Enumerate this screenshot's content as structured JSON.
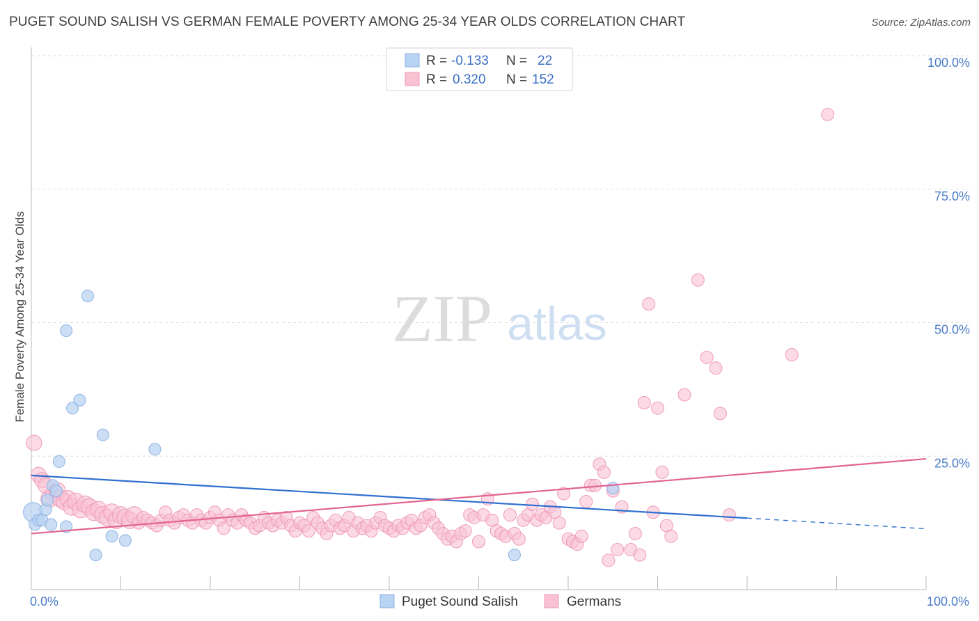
{
  "title": "PUGET SOUND SALISH VS GERMAN FEMALE POVERTY AMONG 25-34 YEAR OLDS CORRELATION CHART",
  "source": "Source: ZipAtlas.com",
  "watermark": {
    "zip": "ZIP",
    "atlas": "atlas"
  },
  "colors": {
    "blue_fill": "#b9d3f2",
    "blue_stroke": "#8db2e3",
    "blue_line": "#2f6fcf",
    "pink_fill": "#f9c2d3",
    "pink_stroke": "#ee9ab6",
    "pink_line": "#e2638f",
    "tick_text": "#4a7bc8",
    "grid": "#dddddd"
  },
  "legend_top": [
    {
      "series": "Puget Sound Salish",
      "r_label": "R =",
      "r_value": "-0.133",
      "n_label": "N =",
      "n_value": "22"
    },
    {
      "series": "Germans",
      "r_label": "R =",
      "r_value": "0.320",
      "n_label": "N =",
      "n_value": "152"
    }
  ],
  "chart_data": {
    "type": "scatter",
    "title": "PUGET SOUND SALISH VS GERMAN FEMALE POVERTY AMONG 25-34 YEAR OLDS CORRELATION CHART",
    "xlabel": "",
    "ylabel": "Female Poverty Among 25-34 Year Olds",
    "xlim": [
      0,
      100
    ],
    "ylim": [
      0,
      100
    ],
    "x_tick_labels": [
      {
        "value": 0,
        "label": "0.0%"
      },
      {
        "value": 100,
        "label": "100.0%"
      }
    ],
    "y_tick_labels": [
      {
        "value": 25,
        "label": "25.0%"
      },
      {
        "value": 50,
        "label": "50.0%"
      },
      {
        "value": 75,
        "label": "75.0%"
      },
      {
        "value": 100,
        "label": "100.0%"
      }
    ],
    "legend": [
      "Puget Sound Salish",
      "Germans"
    ],
    "series": [
      {
        "name": "Puget Sound Salish",
        "color": "#b9d3f2",
        "points": [
          [
            0.2,
            14.5
          ],
          [
            0.4,
            12.2
          ],
          [
            0.8,
            13.0
          ],
          [
            1.2,
            13.0
          ],
          [
            1.6,
            15.0
          ],
          [
            1.8,
            16.8
          ],
          [
            2.2,
            12.2
          ],
          [
            2.4,
            19.5
          ],
          [
            2.8,
            18.5
          ],
          [
            3.1,
            24.0
          ],
          [
            3.9,
            11.8
          ],
          [
            3.9,
            48.5
          ],
          [
            4.6,
            34.0
          ],
          [
            5.4,
            35.5
          ],
          [
            6.3,
            55.0
          ],
          [
            7.2,
            6.5
          ],
          [
            8.0,
            29.0
          ],
          [
            9.0,
            10.0
          ],
          [
            10.5,
            9.2
          ],
          [
            13.8,
            26.3
          ],
          [
            54.0,
            6.5
          ],
          [
            65.0,
            19.0
          ]
        ],
        "trend": {
          "x": [
            0,
            80
          ],
          "y": [
            21.4,
            13.4
          ],
          "dashed_to": [
            100,
            11.4
          ]
        }
      },
      {
        "name": "Germans",
        "color": "#f9c2d3",
        "points": [
          [
            0.3,
            27.5
          ],
          [
            0.8,
            21.5
          ],
          [
            1.2,
            20.5
          ],
          [
            1.6,
            19.5
          ],
          [
            2.0,
            17.0
          ],
          [
            2.5,
            18.0
          ],
          [
            2.9,
            18.5
          ],
          [
            3.3,
            17.0
          ],
          [
            3.7,
            16.5
          ],
          [
            4.1,
            17.0
          ],
          [
            4.5,
            15.5
          ],
          [
            5.0,
            16.5
          ],
          [
            5.5,
            15.0
          ],
          [
            6.0,
            16.0
          ],
          [
            6.5,
            15.5
          ],
          [
            7.0,
            14.5
          ],
          [
            7.5,
            15.0
          ],
          [
            8.0,
            14.0
          ],
          [
            8.5,
            13.5
          ],
          [
            9.0,
            14.5
          ],
          [
            9.5,
            13.0
          ],
          [
            10.0,
            14.0
          ],
          [
            10.5,
            13.5
          ],
          [
            11.0,
            13.0
          ],
          [
            11.5,
            14.0
          ],
          [
            12.0,
            12.5
          ],
          [
            12.5,
            13.5
          ],
          [
            13.0,
            13.0
          ],
          [
            13.5,
            12.5
          ],
          [
            14.0,
            12.0
          ],
          [
            14.5,
            13.0
          ],
          [
            15.0,
            14.5
          ],
          [
            15.5,
            13.0
          ],
          [
            16.0,
            12.5
          ],
          [
            16.5,
            13.5
          ],
          [
            17.0,
            14.0
          ],
          [
            17.5,
            13.0
          ],
          [
            18.0,
            12.5
          ],
          [
            18.5,
            14.0
          ],
          [
            19.0,
            13.0
          ],
          [
            19.5,
            12.5
          ],
          [
            20.0,
            13.5
          ],
          [
            20.5,
            14.5
          ],
          [
            21.0,
            13.0
          ],
          [
            21.5,
            11.5
          ],
          [
            22.0,
            14.0
          ],
          [
            22.5,
            13.0
          ],
          [
            23.0,
            12.5
          ],
          [
            23.5,
            14.0
          ],
          [
            24.0,
            13.0
          ],
          [
            24.5,
            12.5
          ],
          [
            25.0,
            11.5
          ],
          [
            25.5,
            12.0
          ],
          [
            26.0,
            13.5
          ],
          [
            26.5,
            12.5
          ],
          [
            27.0,
            12.0
          ],
          [
            27.5,
            13.0
          ],
          [
            28.0,
            12.5
          ],
          [
            28.5,
            13.5
          ],
          [
            29.0,
            12.0
          ],
          [
            29.5,
            11.0
          ],
          [
            30.0,
            12.5
          ],
          [
            30.5,
            12.0
          ],
          [
            31.0,
            11.0
          ],
          [
            31.5,
            13.5
          ],
          [
            32.0,
            12.5
          ],
          [
            32.5,
            11.5
          ],
          [
            33.0,
            10.5
          ],
          [
            33.5,
            12.0
          ],
          [
            34.0,
            13.0
          ],
          [
            34.5,
            11.5
          ],
          [
            35.0,
            12.0
          ],
          [
            35.5,
            13.5
          ],
          [
            36.0,
            11.0
          ],
          [
            36.5,
            12.5
          ],
          [
            37.0,
            11.5
          ],
          [
            37.5,
            12.0
          ],
          [
            38.0,
            11.0
          ],
          [
            38.5,
            12.5
          ],
          [
            39.0,
            13.5
          ],
          [
            39.5,
            12.0
          ],
          [
            40.0,
            11.5
          ],
          [
            40.5,
            11.0
          ],
          [
            41.0,
            12.0
          ],
          [
            41.5,
            11.5
          ],
          [
            42.0,
            12.5
          ],
          [
            42.5,
            13.0
          ],
          [
            43.0,
            11.5
          ],
          [
            43.5,
            12.0
          ],
          [
            44.0,
            13.5
          ],
          [
            44.5,
            14.0
          ],
          [
            45.0,
            12.5
          ],
          [
            45.5,
            11.5
          ],
          [
            46.0,
            10.5
          ],
          [
            46.5,
            9.5
          ],
          [
            47.0,
            10.0
          ],
          [
            47.5,
            9.0
          ],
          [
            48.0,
            10.5
          ],
          [
            48.5,
            11.0
          ],
          [
            49.0,
            14.0
          ],
          [
            49.5,
            13.5
          ],
          [
            50.0,
            9.0
          ],
          [
            50.5,
            14.0
          ],
          [
            51.0,
            17.0
          ],
          [
            51.5,
            13.0
          ],
          [
            52.0,
            11.0
          ],
          [
            52.5,
            10.5
          ],
          [
            53.0,
            10.0
          ],
          [
            53.5,
            14.0
          ],
          [
            54.0,
            10.5
          ],
          [
            54.5,
            9.5
          ],
          [
            55.0,
            13.0
          ],
          [
            55.5,
            14.0
          ],
          [
            56.0,
            16.0
          ],
          [
            56.5,
            13.0
          ],
          [
            57.0,
            14.0
          ],
          [
            57.5,
            13.5
          ],
          [
            58.0,
            15.5
          ],
          [
            58.5,
            14.5
          ],
          [
            59.0,
            12.5
          ],
          [
            59.5,
            18.0
          ],
          [
            60.0,
            9.5
          ],
          [
            60.5,
            9.0
          ],
          [
            61.0,
            8.5
          ],
          [
            61.5,
            10.0
          ],
          [
            62.0,
            16.5
          ],
          [
            62.5,
            19.5
          ],
          [
            63.0,
            19.5
          ],
          [
            63.5,
            23.5
          ],
          [
            64.0,
            22.0
          ],
          [
            64.5,
            5.5
          ],
          [
            65.0,
            18.5
          ],
          [
            65.5,
            7.5
          ],
          [
            66.0,
            15.5
          ],
          [
            67.0,
            7.5
          ],
          [
            67.5,
            10.5
          ],
          [
            68.0,
            6.5
          ],
          [
            68.5,
            35.0
          ],
          [
            69.0,
            53.5
          ],
          [
            69.5,
            14.5
          ],
          [
            70.0,
            34.0
          ],
          [
            70.5,
            22.0
          ],
          [
            71.0,
            12.0
          ],
          [
            71.5,
            10.0
          ],
          [
            73.0,
            36.5
          ],
          [
            74.5,
            58.0
          ],
          [
            75.5,
            43.5
          ],
          [
            76.5,
            41.5
          ],
          [
            77.0,
            33.0
          ],
          [
            78.0,
            14.0
          ],
          [
            85.0,
            44.0
          ],
          [
            89.0,
            89.0
          ]
        ],
        "trend": {
          "x": [
            0,
            100
          ],
          "y": [
            10.5,
            24.5
          ]
        }
      }
    ]
  }
}
